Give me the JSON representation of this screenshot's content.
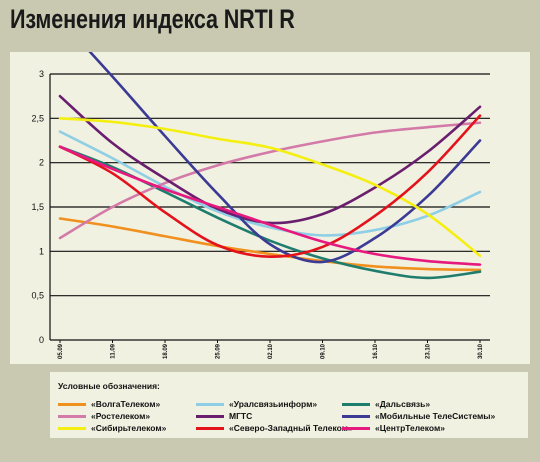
{
  "title": "Изменения индекса NRTI R",
  "legend": {
    "title": "Условные обозначения:",
    "items": [
      {
        "label": "«ВолгаТелеком»",
        "color": "#f0901e"
      },
      {
        "label": "«Уралсвязьинформ»",
        "color": "#8ecfe6"
      },
      {
        "label": "«Дальсвязь»",
        "color": "#1f7d6e"
      },
      {
        "label": "«Ростелеком»",
        "color": "#d47aa8"
      },
      {
        "label": "МГТС",
        "color": "#6a1f6e"
      },
      {
        "label": "«Мобильные ТелеСистемы»",
        "color": "#3b3a94"
      },
      {
        "label": "«Сибирьтелеком»",
        "color": "#f4ef10"
      },
      {
        "label": "«Северо-Западный Телеком»",
        "color": "#e3121b"
      },
      {
        "label": "«ЦентрТелеком»",
        "color": "#e6197f"
      }
    ]
  },
  "chart_data": {
    "type": "line",
    "x": [
      "05.09",
      "11.09",
      "18.09",
      "25.09",
      "02.10",
      "09.10",
      "16.10",
      "23.10",
      "30.10"
    ],
    "ylim": [
      0,
      3
    ],
    "yticks": [
      "0",
      "0,5",
      "1",
      "1,5",
      "2",
      "2,5",
      "3"
    ],
    "grid": true,
    "legend": "bottom",
    "series": [
      {
        "name": "«ВолгаТелеком»",
        "color": "#f0901e",
        "values": [
          1.37,
          1.28,
          1.17,
          1.06,
          0.97,
          0.89,
          0.83,
          0.8,
          0.79
        ]
      },
      {
        "name": "«Уралсвязьинформ»",
        "color": "#8ecfe6",
        "values": [
          2.35,
          2.05,
          1.73,
          1.45,
          1.27,
          1.18,
          1.24,
          1.4,
          1.67
        ]
      },
      {
        "name": "«Дальсвязь»",
        "color": "#1f7d6e",
        "values": [
          2.18,
          1.95,
          1.67,
          1.38,
          1.12,
          0.92,
          0.78,
          0.7,
          0.77
        ]
      },
      {
        "name": "«Ростелеком»",
        "color": "#d47aa8",
        "values": [
          1.15,
          1.5,
          1.77,
          1.97,
          2.12,
          2.24,
          2.34,
          2.4,
          2.45
        ]
      },
      {
        "name": "МГТС",
        "color": "#6a1f6e",
        "values": [
          2.75,
          2.22,
          1.82,
          1.48,
          1.32,
          1.42,
          1.72,
          2.12,
          2.63
        ]
      },
      {
        "name": "«Мобильные ТелеСистемы»",
        "color": "#3b3a94",
        "values": [
          3.62,
          2.97,
          2.3,
          1.65,
          1.08,
          0.88,
          1.15,
          1.62,
          2.25
        ]
      },
      {
        "name": "«Сибирьтелеком»",
        "color": "#f4ef10",
        "values": [
          2.5,
          2.46,
          2.38,
          2.27,
          2.17,
          1.98,
          1.75,
          1.42,
          0.95
        ]
      },
      {
        "name": "«Северо-Западный Телеком»",
        "color": "#e3121b",
        "values": [
          2.18,
          1.88,
          1.44,
          1.07,
          0.94,
          1.05,
          1.4,
          1.89,
          2.53
        ]
      },
      {
        "name": "«ЦентрТелеком»",
        "color": "#e6197f",
        "values": [
          2.18,
          1.93,
          1.7,
          1.5,
          1.3,
          1.11,
          0.97,
          0.89,
          0.85
        ]
      }
    ]
  }
}
